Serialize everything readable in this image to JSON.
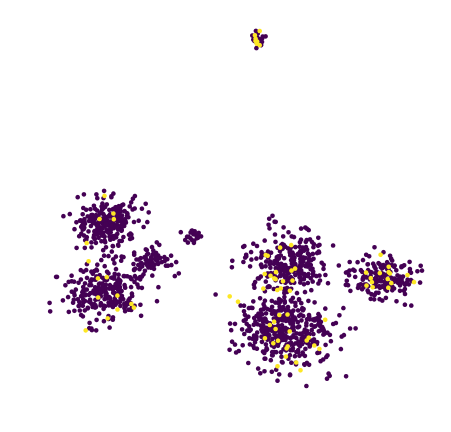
{
  "chart_data": {
    "type": "scatter",
    "title": "",
    "xlabel": "",
    "ylabel": "",
    "axes_visible": false,
    "grid": false,
    "legend": "none",
    "color_map": {
      "0": "#440154",
      "1": "#fde725"
    },
    "clusters": [
      {
        "name": "",
        "center": [
          258,
          40
        ],
        "spread": [
          5,
          9
        ],
        "count": 35,
        "highlight_ratio": 0.18
      },
      {
        "name": "",
        "center": [
          108,
          225
        ],
        "spread": [
          28,
          24
        ],
        "count": 240,
        "highlight_ratio": 0.05
      },
      {
        "name": "",
        "center": [
          104,
          292
        ],
        "spread": [
          34,
          24
        ],
        "count": 260,
        "highlight_ratio": 0.05
      },
      {
        "name": "",
        "center": [
          150,
          262
        ],
        "spread": [
          18,
          13
        ],
        "count": 70,
        "highlight_ratio": 0.03
      },
      {
        "name": "",
        "center": [
          193,
          236
        ],
        "spread": [
          9,
          6
        ],
        "count": 20,
        "highlight_ratio": 0.0
      },
      {
        "name": "",
        "center": [
          287,
          265
        ],
        "spread": [
          36,
          26
        ],
        "count": 270,
        "highlight_ratio": 0.07
      },
      {
        "name": "",
        "center": [
          286,
          330
        ],
        "spread": [
          44,
          35
        ],
        "count": 420,
        "highlight_ratio": 0.07
      },
      {
        "name": "",
        "center": [
          381,
          278
        ],
        "spread": [
          30,
          20
        ],
        "count": 190,
        "highlight_ratio": 0.07
      },
      {
        "name": "",
        "center": [
          273,
          222
        ],
        "spread": [
          4,
          7
        ],
        "count": 6,
        "highlight_ratio": 0.0
      }
    ]
  }
}
